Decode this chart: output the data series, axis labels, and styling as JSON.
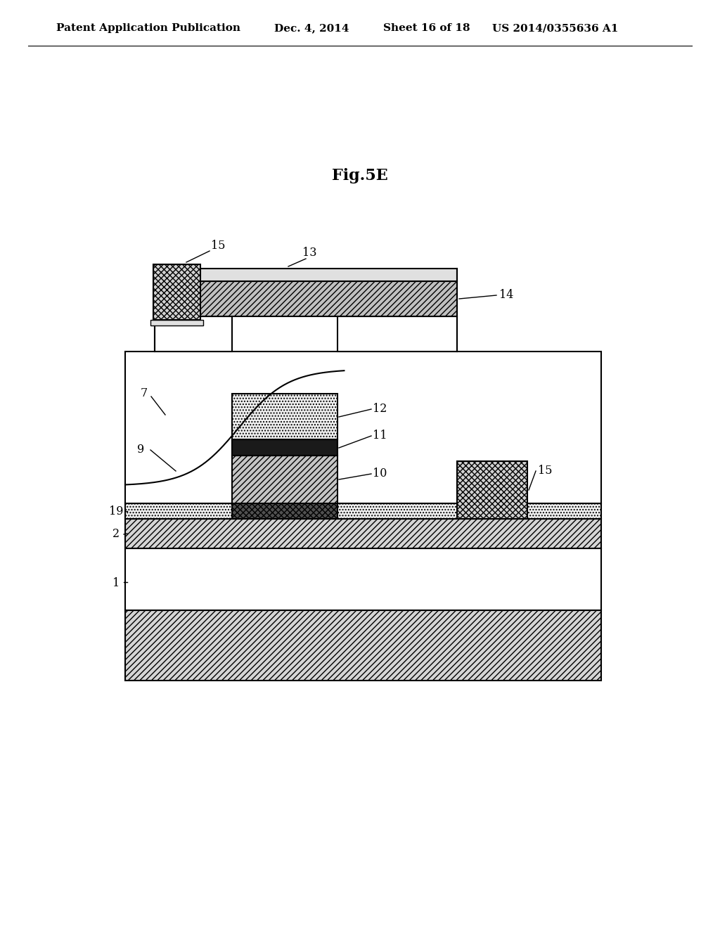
{
  "title": "Fig.5E",
  "header_left": "Patent Application Publication",
  "header_mid": "Dec. 4, 2014   Sheet 16 of 18",
  "header_right": "US 2014/0355636 A1",
  "bg_color": "#ffffff",
  "line_color": "#000000"
}
